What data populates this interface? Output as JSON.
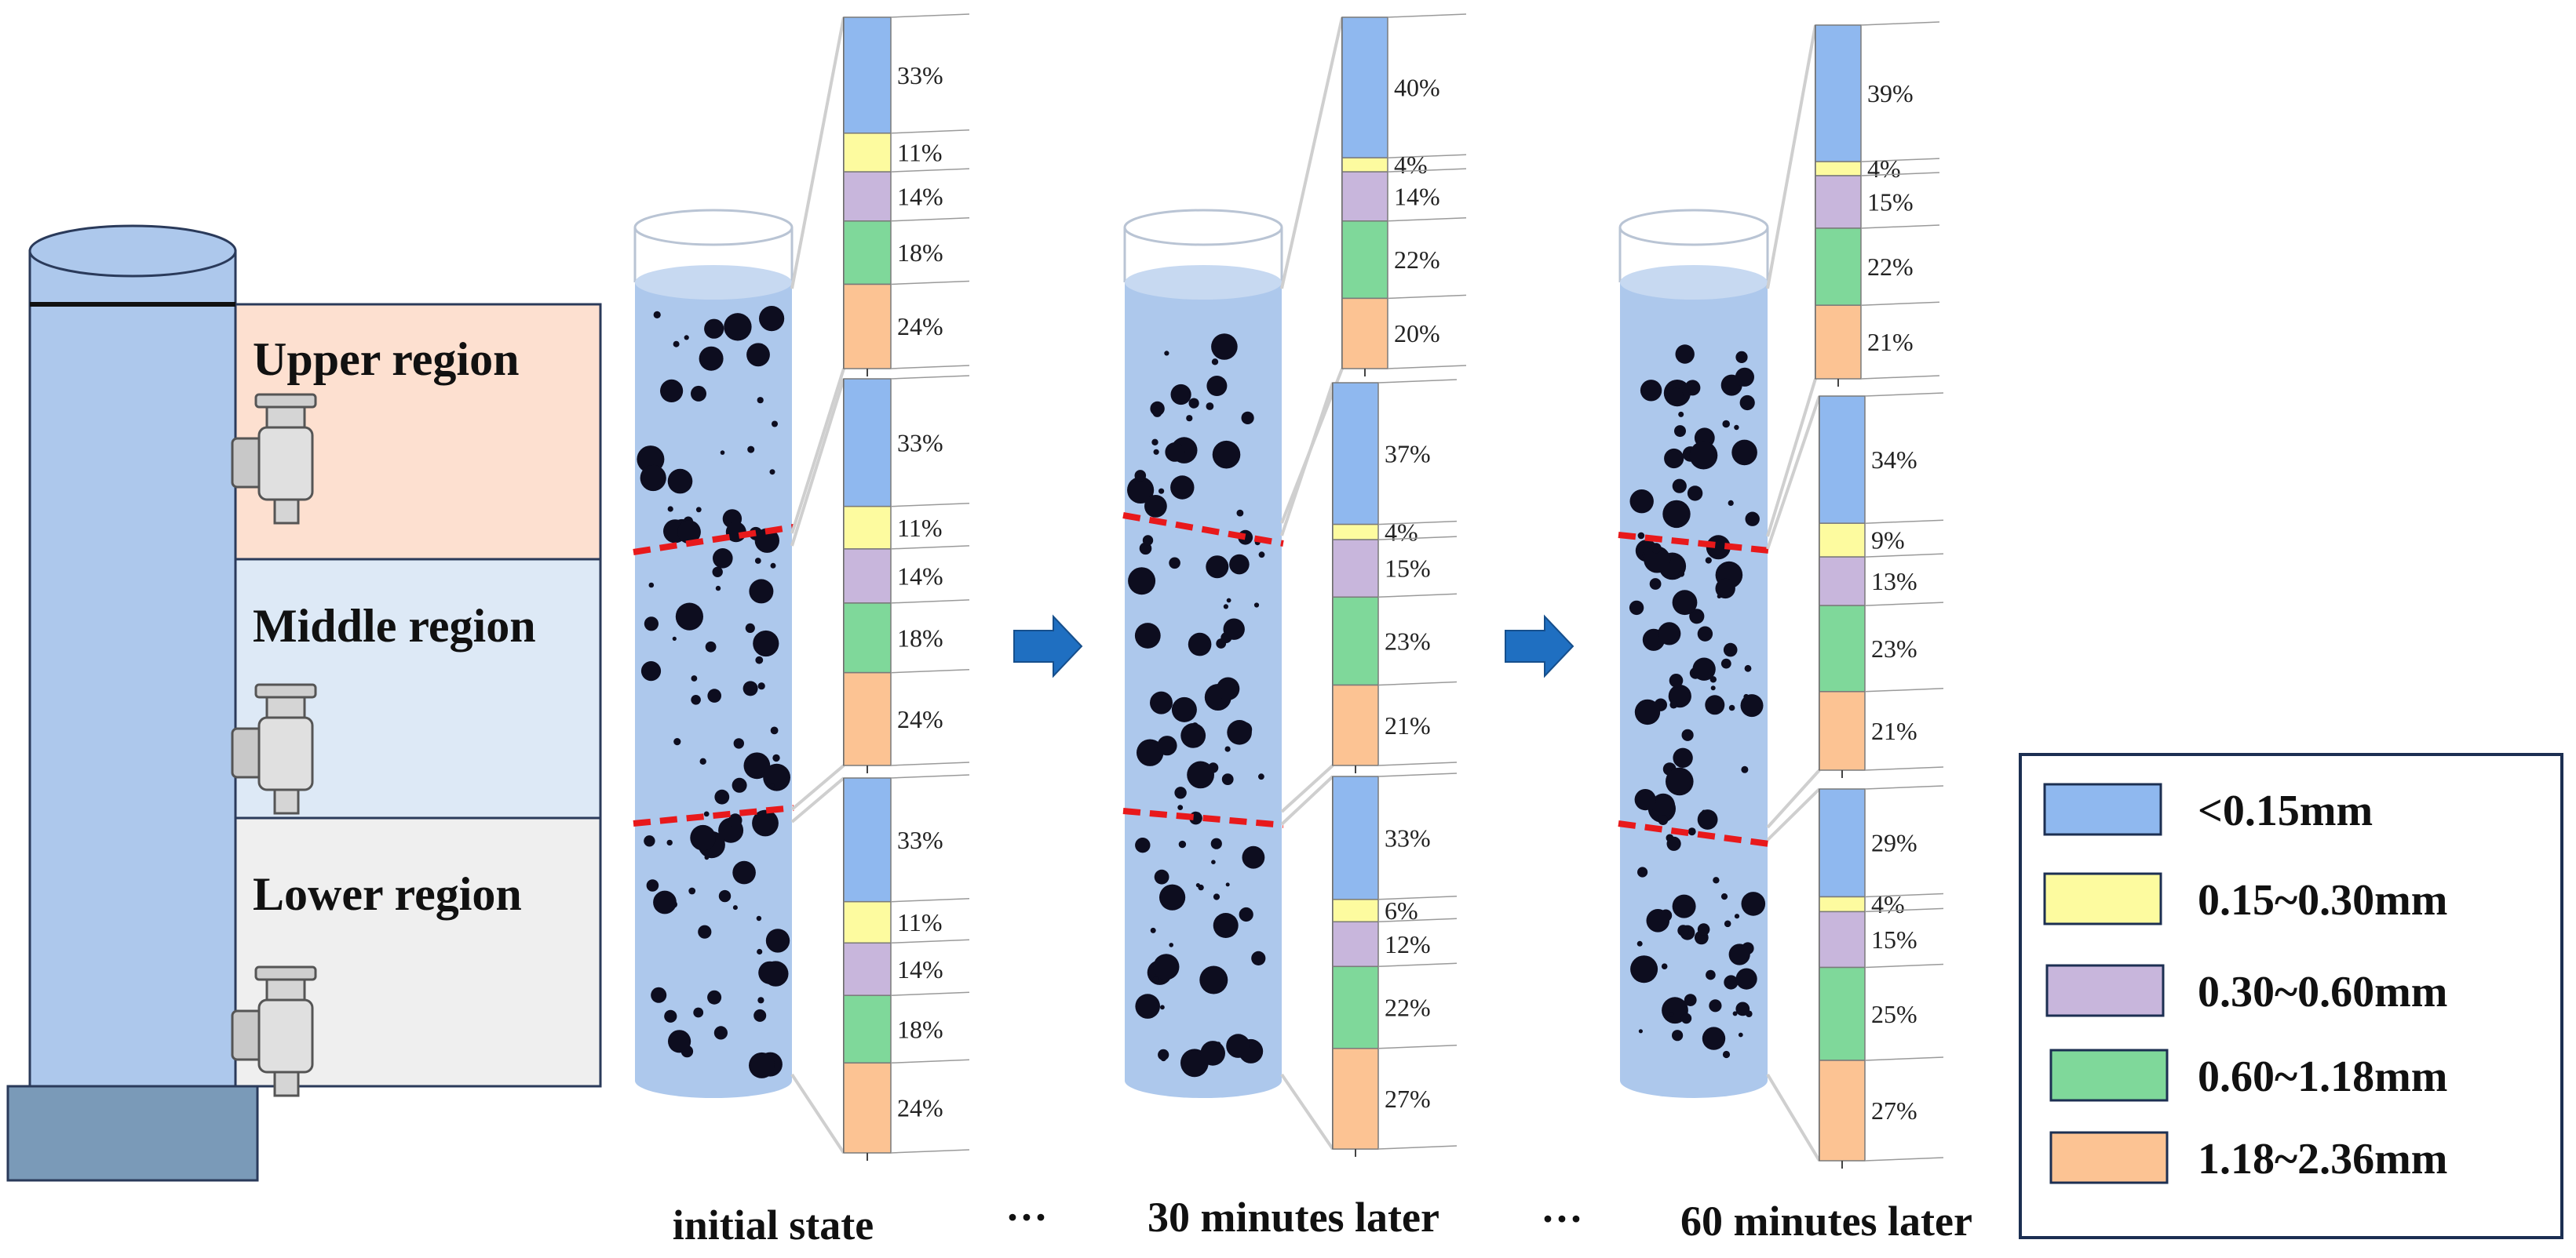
{
  "colors": {
    "lt015": "#8fb8ef",
    "r015_030": "#fdfb9f",
    "r030_060": "#c8b6dc",
    "r060_118": "#7fd89a",
    "r118_236": "#fcc393",
    "water": "#adc8ec",
    "column": "#adc8ec",
    "base": "#7a9ab8",
    "upper_bg": "#fde0d0",
    "middle_bg": "#dde9f6",
    "lower_bg": "#efefef",
    "dashed_line": "#e8191b",
    "arrow": "#1f6fc1",
    "particle": "#0d0d1f"
  },
  "regions": {
    "upper": "Upper region",
    "middle": "Middle region",
    "lower": "Lower region"
  },
  "stages": [
    {
      "label": "initial state",
      "regions": [
        {
          "name": "upper",
          "values": [
            33,
            11,
            14,
            18,
            24
          ],
          "labels": [
            "33%",
            "11%",
            "14%",
            "18%",
            "24%"
          ]
        },
        {
          "name": "middle",
          "values": [
            33,
            11,
            14,
            18,
            24
          ],
          "labels": [
            "33%",
            "11%",
            "14%",
            "18%",
            "24%"
          ]
        },
        {
          "name": "lower",
          "values": [
            33,
            11,
            14,
            18,
            24
          ],
          "labels": [
            "33%",
            "11%",
            "14%",
            "18%",
            "24%"
          ]
        }
      ]
    },
    {
      "label": "30 minutes later",
      "regions": [
        {
          "name": "upper",
          "values": [
            40,
            4,
            14,
            22,
            20
          ],
          "labels": [
            "40%",
            "4%",
            "14%",
            "22%",
            "20%"
          ]
        },
        {
          "name": "middle",
          "values": [
            37,
            4,
            15,
            23,
            21
          ],
          "labels": [
            "37%",
            "4%",
            "15%",
            "23%",
            "21%"
          ]
        },
        {
          "name": "lower",
          "values": [
            33,
            6,
            12,
            22,
            27
          ],
          "labels": [
            "33%",
            "6%",
            "12%",
            "22%",
            "27%"
          ]
        }
      ]
    },
    {
      "label": "60 minutes later",
      "regions": [
        {
          "name": "upper",
          "values": [
            39,
            4,
            15,
            22,
            21
          ],
          "labels": [
            "39%",
            "4%",
            "15%",
            "22%",
            "21%"
          ]
        },
        {
          "name": "middle",
          "values": [
            34,
            9,
            13,
            23,
            21
          ],
          "labels": [
            "34%",
            "9%",
            "13%",
            "23%",
            "21%"
          ]
        },
        {
          "name": "lower",
          "values": [
            29,
            4,
            15,
            25,
            27
          ],
          "labels": [
            "29%",
            "4%",
            "15%",
            "25%",
            "27%"
          ]
        }
      ]
    }
  ],
  "ellipsis": "···",
  "legend": [
    {
      "label": "<0.15mm",
      "color": "#8fb8ef"
    },
    {
      "label": "0.15~0.30mm",
      "color": "#fdfb9f"
    },
    {
      "label": "0.30~0.60mm",
      "color": "#c8b6dc"
    },
    {
      "label": "0.60~1.18mm",
      "color": "#7fd89a"
    },
    {
      "label": "1.18~2.36mm",
      "color": "#fcc393"
    }
  ]
}
